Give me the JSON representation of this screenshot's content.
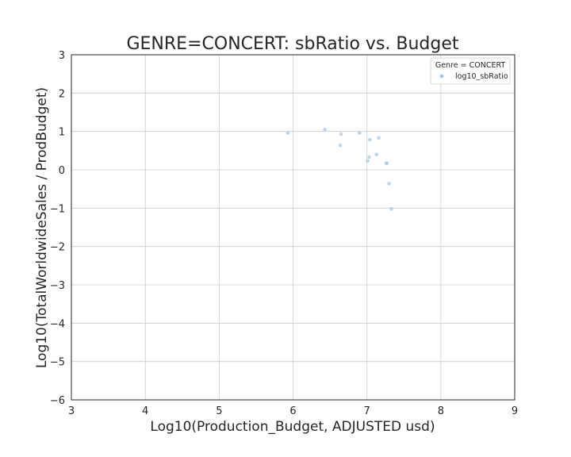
{
  "chart_data": {
    "type": "scatter",
    "title": "GENRE=CONCERT: sbRatio vs. Budget",
    "xlabel": "Log10(Production_Budget, ADJUSTED usd)",
    "ylabel": "Log10(TotalWorldwideSales / ProdBudget)",
    "xlim": [
      3,
      9
    ],
    "ylim": [
      -6,
      3
    ],
    "xticks": [
      "3",
      "4",
      "5",
      "6",
      "7",
      "8",
      "9"
    ],
    "yticks": [
      "3",
      "2",
      "1",
      "0",
      "−1",
      "−2",
      "−3",
      "−4",
      "−5",
      "−6"
    ],
    "grid": true,
    "legend": {
      "title": "Genre = CONCERT",
      "placement": "top-right",
      "entries": [
        "log10_sbRatio"
      ]
    },
    "series": [
      {
        "name": "log10_sbRatio",
        "color": "#a6c8e6",
        "points": [
          {
            "x": 5.93,
            "y": 0.96
          },
          {
            "x": 6.43,
            "y": 1.05
          },
          {
            "x": 6.64,
            "y": 0.64
          },
          {
            "x": 6.65,
            "y": 0.93
          },
          {
            "x": 6.9,
            "y": 0.96
          },
          {
            "x": 7.01,
            "y": 0.23
          },
          {
            "x": 7.03,
            "y": 0.33
          },
          {
            "x": 7.04,
            "y": 0.78
          },
          {
            "x": 7.13,
            "y": 0.4
          },
          {
            "x": 7.16,
            "y": 0.83
          },
          {
            "x": 7.26,
            "y": 0.17
          },
          {
            "x": 7.27,
            "y": 0.17
          },
          {
            "x": 7.3,
            "y": -0.36
          },
          {
            "x": 7.33,
            "y": -1.02
          }
        ]
      }
    ]
  }
}
